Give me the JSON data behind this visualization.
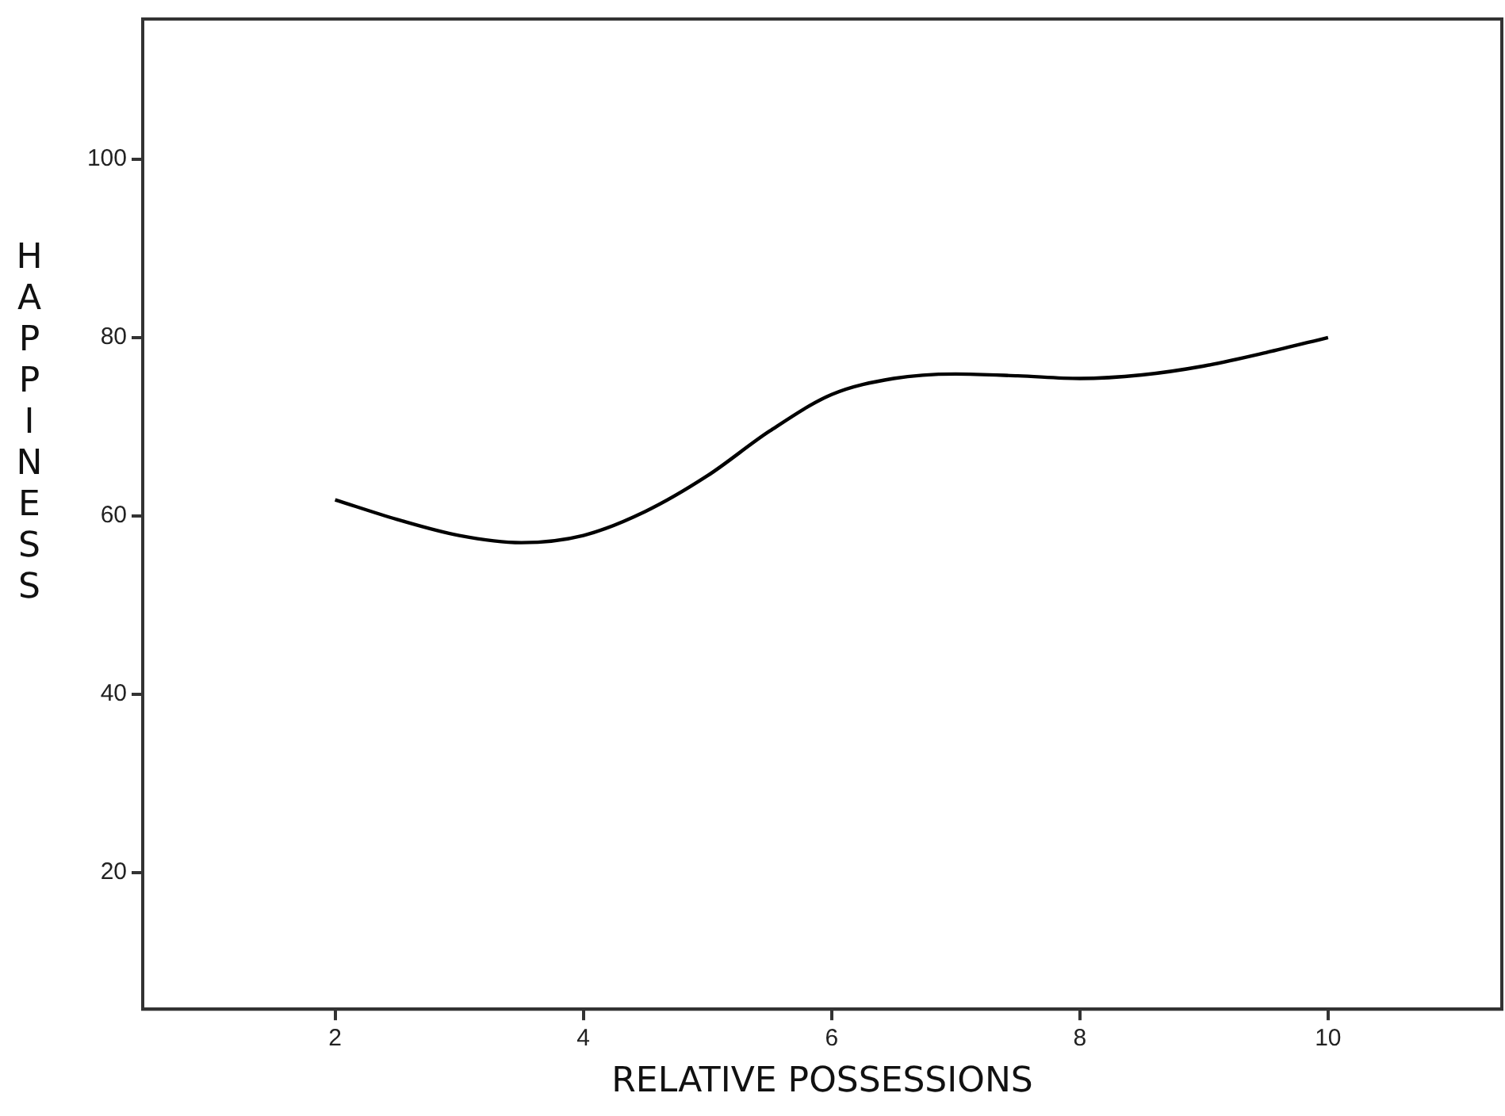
{
  "chart_data": {
    "type": "line",
    "xlabel": "RELATIVE POSSESSIONS",
    "ylabel": "HAPPINESS",
    "x": [
      2,
      2.5,
      3,
      3.5,
      4,
      4.5,
      5,
      5.5,
      6,
      6.5,
      7,
      7.5,
      8,
      8.5,
      9,
      9.5,
      10
    ],
    "series": [
      {
        "color": "#000000",
        "values": [
          61.8,
          59.6,
          57.8,
          57,
          57.8,
          60.5,
          64.5,
          69.5,
          73.6,
          75.4,
          75.9,
          75.7,
          75.4,
          75.8,
          76.8,
          78.3,
          80
        ]
      }
    ],
    "xlim": [
      0.45,
      11.4
    ],
    "xticks": [
      2,
      4,
      6,
      8,
      10
    ],
    "ylim": [
      4.7,
      115.7
    ],
    "yticks": [
      20,
      40,
      60,
      80,
      100
    ],
    "grid": false,
    "legend": false,
    "marker": "none",
    "line_style": "solid"
  }
}
